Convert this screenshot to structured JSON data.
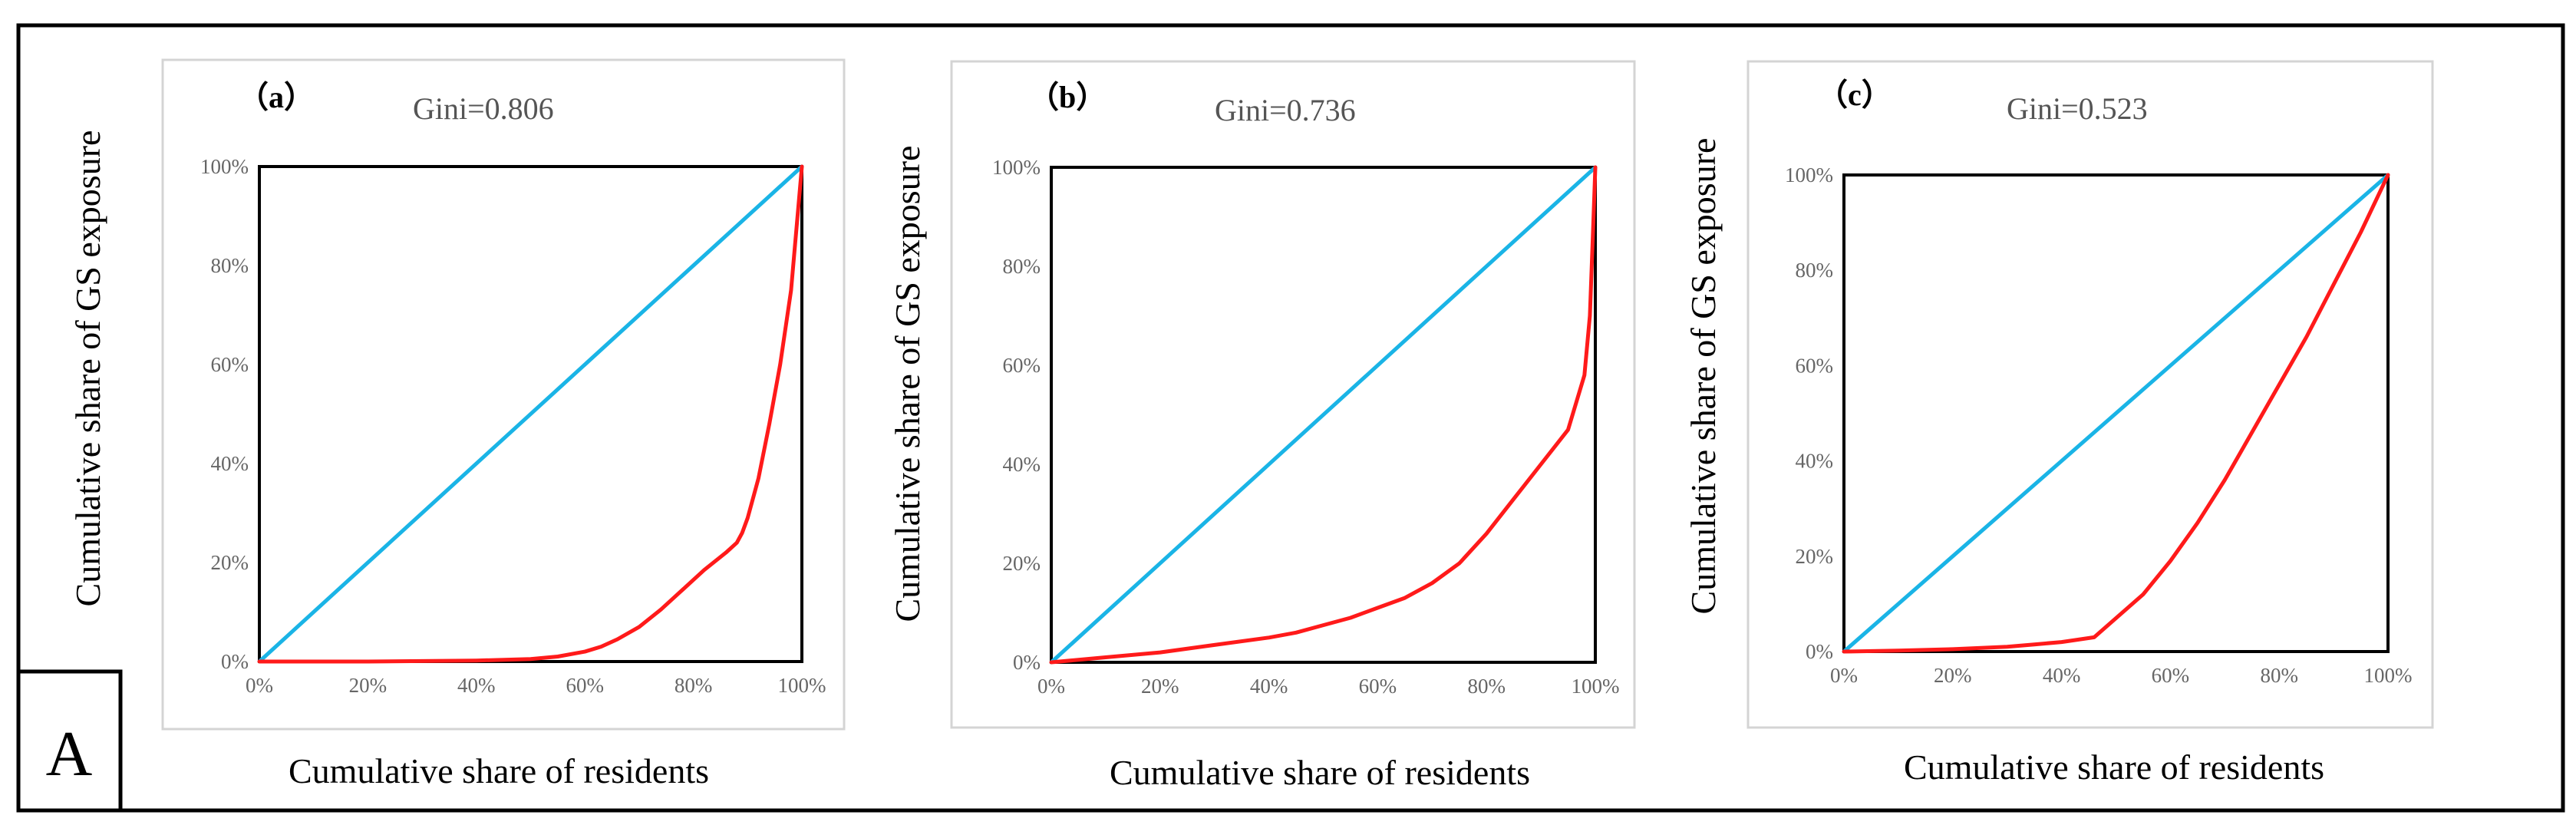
{
  "figure_label": "A",
  "colors": {
    "lorenz": "#ff1a1a",
    "equality": "#1ab4e6",
    "frame": "#000000",
    "panel_border": "#d4d4d4"
  },
  "chart_data": [
    {
      "type": "line",
      "panel": "（a）",
      "gini": "Gini=0.806",
      "xlabel": "Cumulative share of residents",
      "ylabel": "Cumulative share of GS exposure",
      "x_ticks": [
        "0%",
        "20%",
        "40%",
        "60%",
        "80%",
        "100%"
      ],
      "y_ticks": [
        "0%",
        "20%",
        "40%",
        "60%",
        "80%",
        "100%"
      ],
      "xlim": [
        0,
        100
      ],
      "ylim": [
        0,
        100
      ],
      "series": [
        {
          "name": "Equality line",
          "x": [
            0,
            100
          ],
          "y": [
            0,
            100
          ]
        },
        {
          "name": "Lorenz curve",
          "x": [
            0,
            20,
            40,
            50,
            55,
            60,
            63,
            66,
            70,
            74,
            78,
            82,
            86,
            88,
            89,
            90,
            92,
            94,
            96,
            98,
            100
          ],
          "y": [
            0,
            0,
            0.2,
            0.5,
            1,
            2,
            3,
            4.5,
            7,
            10.5,
            14.5,
            18.5,
            22,
            24,
            26,
            29,
            37,
            48,
            60,
            75,
            100
          ]
        }
      ]
    },
    {
      "type": "line",
      "panel": "（b）",
      "gini": "Gini=0.736",
      "xlabel": "Cumulative share of residents",
      "ylabel": "Cumulative share of GS exposure",
      "x_ticks": [
        "0%",
        "20%",
        "40%",
        "60%",
        "80%",
        "100%"
      ],
      "y_ticks": [
        "0%",
        "20%",
        "40%",
        "60%",
        "80%",
        "100%"
      ],
      "xlim": [
        0,
        100
      ],
      "ylim": [
        0,
        100
      ],
      "series": [
        {
          "name": "Equality line",
          "x": [
            0,
            100
          ],
          "y": [
            0,
            100
          ]
        },
        {
          "name": "Lorenz curve",
          "x": [
            0,
            10,
            20,
            30,
            40,
            45,
            50,
            55,
            60,
            65,
            70,
            75,
            80,
            85,
            90,
            95,
            98,
            99,
            99.5,
            100
          ],
          "y": [
            0,
            1,
            2,
            3.5,
            5,
            6,
            7.5,
            9,
            11,
            13,
            16,
            20,
            26,
            33,
            40,
            47,
            58,
            70,
            85,
            100
          ]
        }
      ]
    },
    {
      "type": "line",
      "panel": "（c）",
      "gini": "Gini=0.523",
      "xlabel": "Cumulative share of residents",
      "ylabel": "Cumulative share of GS exposure",
      "x_ticks": [
        "0%",
        "20%",
        "40%",
        "60%",
        "80%",
        "100%"
      ],
      "y_ticks": [
        "0%",
        "20%",
        "40%",
        "60%",
        "80%",
        "100%"
      ],
      "xlim": [
        0,
        100
      ],
      "ylim": [
        0,
        100
      ],
      "series": [
        {
          "name": "Equality line",
          "x": [
            0,
            100
          ],
          "y": [
            0,
            100
          ]
        },
        {
          "name": "Lorenz curve",
          "x": [
            0,
            10,
            20,
            30,
            35,
            40,
            43,
            46,
            50,
            55,
            60,
            65,
            70,
            75,
            80,
            85,
            90,
            95,
            100
          ],
          "y": [
            0,
            0.2,
            0.5,
            1,
            1.5,
            2,
            2.5,
            3,
            7,
            12,
            19,
            27,
            36,
            46,
            56,
            66,
            77,
            88,
            100
          ]
        }
      ]
    }
  ]
}
